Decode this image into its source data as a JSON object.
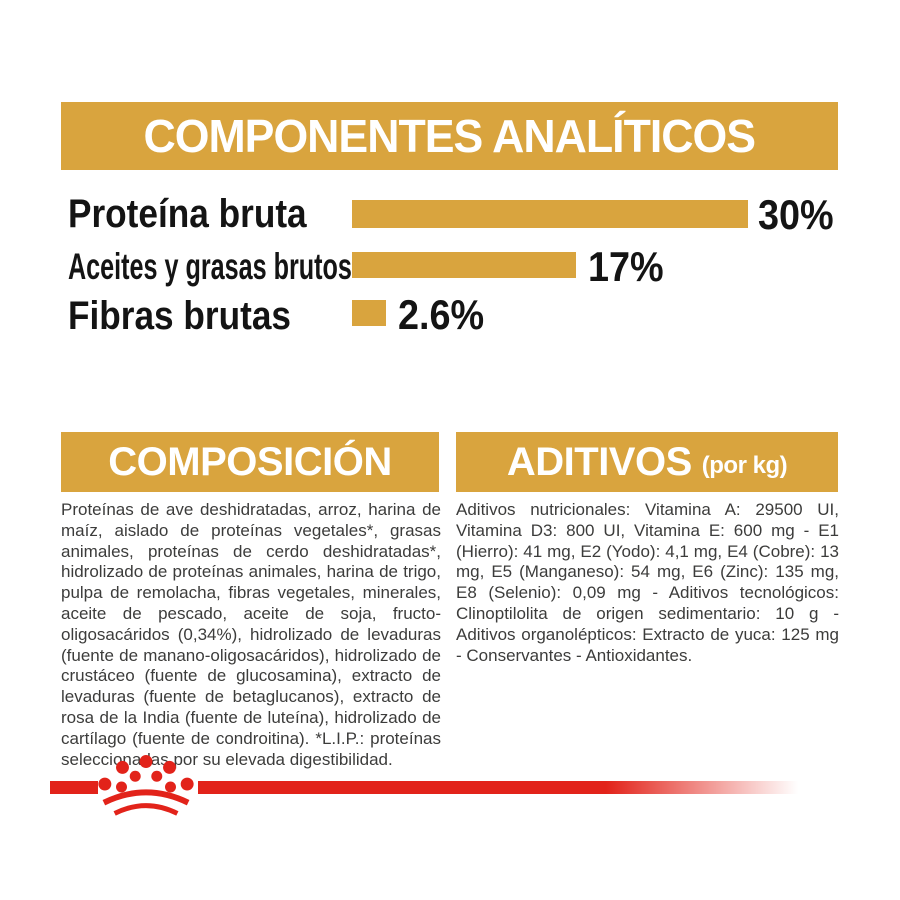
{
  "colors": {
    "gold": "#D9A43E",
    "red": "#E2231A",
    "text_dark": "#3C3C3B",
    "heading_text": "#FFFFFF",
    "chart_text": "#141414"
  },
  "analytical_section": {
    "title": "COMPONENTES ANALÍTICOS"
  },
  "chart_data": {
    "type": "bar",
    "orientation": "horizontal",
    "title": "COMPONENTES ANALÍTICOS",
    "categories": [
      "Proteína bruta",
      "Aceites y grasas brutos",
      "Fibras brutas"
    ],
    "values": [
      30,
      17,
      2.6
    ],
    "value_labels": [
      "30%",
      "17%",
      "2.6%"
    ],
    "xlabel": "",
    "ylabel": "",
    "xlim": [
      0,
      30
    ],
    "bar_color": "#D9A43E",
    "grid": false,
    "legend": false
  },
  "composition_section": {
    "title": "COMPOSICIÓN",
    "body": "Proteínas de ave deshidratadas, arroz, harina de maíz, aislado de proteínas vegetales*, grasas animales, proteínas de cerdo deshidratadas*, hidrolizado de proteínas animales, harina de trigo, pulpa de remolacha, fibras vegetales, minerales, aceite de pescado, aceite de soja, fructo-oligosacáridos (0,34%), hidrolizado de levaduras (fuente de manano-oligosacáridos), hidrolizado de crustáceo (fuente de glucosamina), extracto de levaduras (fuente de betaglucanos), extracto de rosa de la India (fuente de luteína), hidrolizado de cartílago (fuente de condroitina). *L.I.P.: proteínas seleccionadas por su elevada digestibilidad."
  },
  "additives_section": {
    "title": "ADITIVOS",
    "title_suffix": "(por kg)",
    "body": "Aditivos nutricionales: Vitamina A: 29500 UI, Vitamina D3: 800 UI, Vitamina E: 600 mg - E1 (Hierro): 41 mg, E2 (Yodo): 4,1 mg, E4 (Cobre): 13 mg, E5 (Manganeso): 54 mg, E6 (Zinc): 135 mg, E8 (Selenio): 0,09 mg - Aditivos tecnológicos: Clinoptilolita de origen sedimentario: 10 g - Aditivos organolépticos: Extracto de yuca: 125 mg - Conservantes - Antioxidantes.",
    "body_align": "justify"
  },
  "footer": {
    "logo": "royal-canin-crown"
  }
}
